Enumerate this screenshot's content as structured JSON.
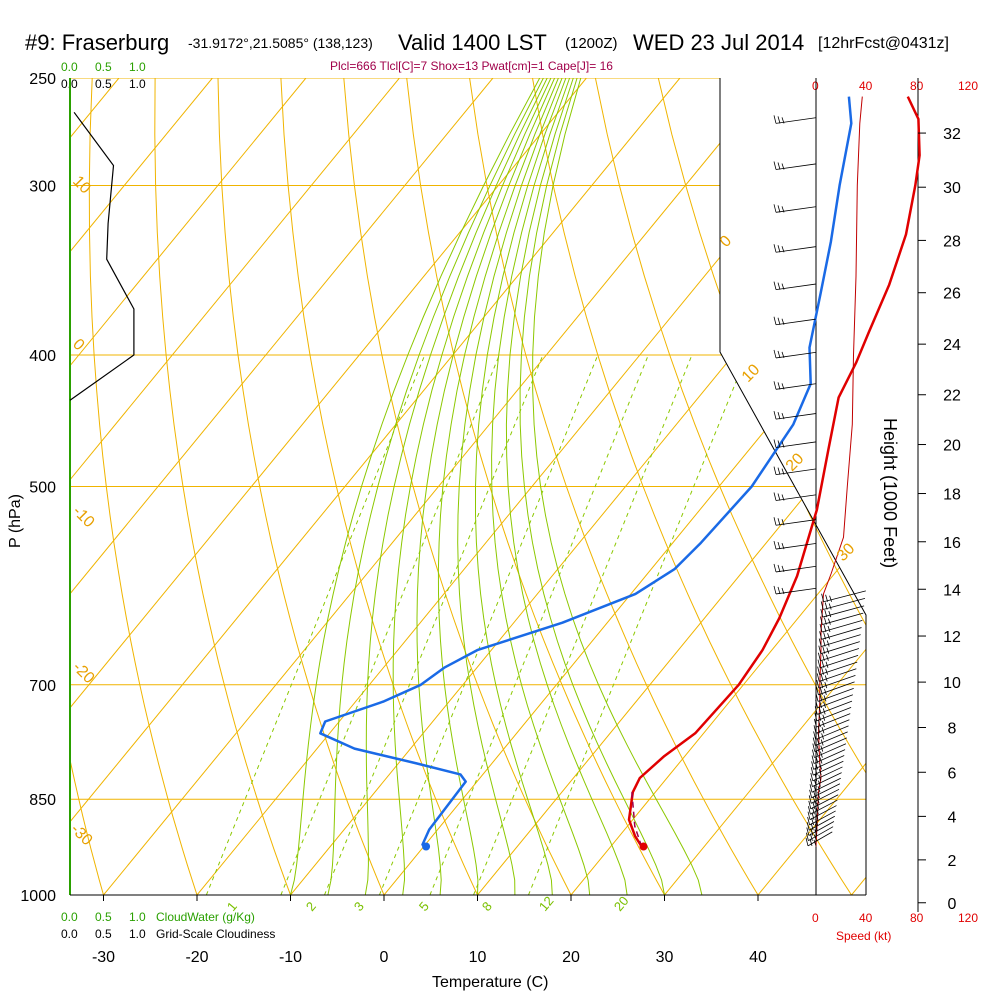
{
  "header": {
    "station": "#9: Fraserburg",
    "coords": "-31.9172°,21.5085° (138,123)",
    "valid": "Valid 1400 LST",
    "zulu": "(1200Z)",
    "date": "WED 23 Jul 2014",
    "forecast": "[12hrFcst@0431z]",
    "indices": "Plcl=666 Tlcl[C]=7 Shox=13 Pwat[cm]=1 Cape[J]= 16"
  },
  "left_scales": {
    "cloudwater_top": [
      "0.0",
      "0.5",
      "1.0"
    ],
    "cloudiness_top": [
      "0.0",
      "0.5",
      "1.0"
    ],
    "cloudwater_bottom": [
      "0.0",
      "0.5",
      "1.0"
    ],
    "cloudwater_label": "CloudWater (g/Kg)",
    "cloudiness_bottom": [
      "0.0",
      "0.5",
      "1.0"
    ],
    "cloudiness_label": "Grid-Scale Cloudiness"
  },
  "speed_scale": {
    "top": [
      "0",
      "40",
      "80",
      "120"
    ],
    "bottom": [
      "0",
      "40",
      "80",
      "120"
    ],
    "label": "Speed (kt)"
  },
  "axis_labels": {
    "y": "P (hPa)",
    "x": "Temperature (C)",
    "height": "Height (1000 Feet)"
  },
  "chart_data": {
    "type": "line",
    "pressure_ticks": [
      250,
      300,
      400,
      500,
      700,
      850,
      1000
    ],
    "temperature_ticks": [
      -30,
      -20,
      -10,
      0,
      10,
      20,
      30,
      40
    ],
    "height_ticks_kft": [
      0,
      2,
      4,
      6,
      8,
      10,
      12,
      14,
      16,
      18,
      20,
      22,
      24,
      26,
      28,
      30,
      32
    ],
    "xlim": [
      -34,
      36
    ],
    "ylim_hpa": [
      1000,
      250
    ],
    "temperature_profile": {
      "color": "#e00000",
      "points": [
        [
          23.3,
          921
        ],
        [
          21.7,
          905
        ],
        [
          19.6,
          880
        ],
        [
          17.6,
          840
        ],
        [
          17.1,
          820
        ],
        [
          17.8,
          790
        ],
        [
          19.1,
          760
        ],
        [
          19.5,
          700
        ],
        [
          19.0,
          660
        ],
        [
          18.0,
          625
        ],
        [
          16.2,
          582
        ],
        [
          12.5,
          520
        ],
        [
          8.5,
          470
        ],
        [
          5.0,
          430
        ],
        [
          3.8,
          405
        ],
        [
          2.5,
          385
        ],
        [
          0.5,
          355
        ],
        [
          -2.1,
          326
        ],
        [
          -5.4,
          300
        ],
        [
          -7.6,
          285
        ],
        [
          -10.9,
          268
        ],
        [
          -14.0,
          258
        ]
      ]
    },
    "dewpoint_profile": {
      "color": "#1a6ae6",
      "points": [
        [
          0.3,
          921
        ],
        [
          -0.3,
          918
        ],
        [
          -0.9,
          895
        ],
        [
          -1.1,
          850
        ],
        [
          -1.2,
          825
        ],
        [
          -2.4,
          815
        ],
        [
          -8.0,
          800
        ],
        [
          -16.0,
          780
        ],
        [
          -21.0,
          760
        ],
        [
          -21.5,
          745
        ],
        [
          -17.0,
          720
        ],
        [
          -14.5,
          700
        ],
        [
          -13.5,
          680
        ],
        [
          -11.5,
          660
        ],
        [
          -4.8,
          630
        ],
        [
          0.5,
          600
        ],
        [
          2.5,
          575
        ],
        [
          3.0,
          550
        ],
        [
          3.5,
          500
        ],
        [
          2.5,
          450
        ],
        [
          0.8,
          420
        ],
        [
          -2.5,
          395
        ],
        [
          -6.1,
          360
        ],
        [
          -9.5,
          330
        ],
        [
          -13.5,
          300
        ],
        [
          -17.7,
          270
        ],
        [
          -20.3,
          258
        ]
      ]
    },
    "parcel_trace": {
      "color": "#a0004a",
      "points": [
        [
          23.3,
          921
        ],
        [
          20.8,
          890
        ],
        [
          17.5,
          840
        ]
      ]
    },
    "surface_temperature": 23.5,
    "surface_dewpoint": 4.5,
    "isotherm_labels": [
      "10",
      "0",
      "-10",
      "-20",
      "-30"
    ],
    "dry_adiabat_labels": [
      "0",
      "10",
      "20",
      "30"
    ],
    "mixing_ratio_labels": [
      "1",
      "2",
      "3",
      "5",
      "8",
      "12",
      "20"
    ],
    "wind_speed_profile_kt": [
      [
        0,
        921
      ],
      [
        1,
        880
      ],
      [
        2,
        840
      ],
      [
        4,
        820
      ],
      [
        3,
        800
      ],
      [
        2,
        760
      ],
      [
        3,
        720
      ],
      [
        3,
        700
      ],
      [
        4,
        660
      ],
      [
        4,
        640
      ],
      [
        6,
        600
      ],
      [
        12,
        580
      ],
      [
        22,
        545
      ],
      [
        25,
        500
      ],
      [
        29,
        450
      ],
      [
        30,
        400
      ],
      [
        32,
        350
      ],
      [
        33,
        300
      ],
      [
        35,
        270
      ],
      [
        37,
        258
      ]
    ]
  }
}
